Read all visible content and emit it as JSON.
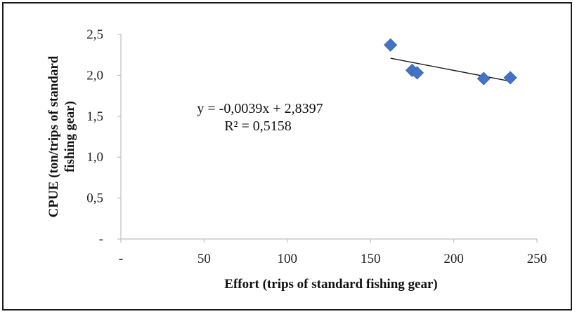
{
  "chart_data": {
    "type": "scatter",
    "title": "",
    "xlabel": "Effort (trips of standard fishing gear)",
    "ylabel_lines": [
      "CPUE (ton/trips of standard",
      "fishing gear)"
    ],
    "xlim": [
      0,
      250
    ],
    "ylim": [
      0,
      2.5
    ],
    "x_ticks": [
      {
        "value": 0,
        "label": "-"
      },
      {
        "value": 50,
        "label": "50"
      },
      {
        "value": 100,
        "label": "100"
      },
      {
        "value": 150,
        "label": "150"
      },
      {
        "value": 200,
        "label": "200"
      },
      {
        "value": 250,
        "label": "250"
      }
    ],
    "y_ticks": [
      {
        "value": 0,
        "label": "-"
      },
      {
        "value": 0.5,
        "label": "0,5"
      },
      {
        "value": 1.0,
        "label": "1,0"
      },
      {
        "value": 1.5,
        "label": "1,5"
      },
      {
        "value": 2.0,
        "label": "2,0"
      },
      {
        "value": 2.5,
        "label": "2,5"
      }
    ],
    "grid": false,
    "legend": "none",
    "series": [
      {
        "marker": "diamond",
        "color": "#4472c4",
        "points": [
          {
            "x": 162,
            "y": 2.37
          },
          {
            "x": 175,
            "y": 2.06
          },
          {
            "x": 178,
            "y": 2.03
          },
          {
            "x": 218,
            "y": 1.96
          },
          {
            "x": 234,
            "y": 1.97
          }
        ]
      }
    ],
    "trendline": {
      "type": "linear",
      "slope": -0.0039,
      "intercept": 2.8397,
      "x_range": [
        162,
        234
      ],
      "color": "#1a1a1a"
    },
    "annotations": {
      "equation": "y = -0,0039x + 2,8397",
      "r_squared": "R² = 0,5158"
    }
  }
}
